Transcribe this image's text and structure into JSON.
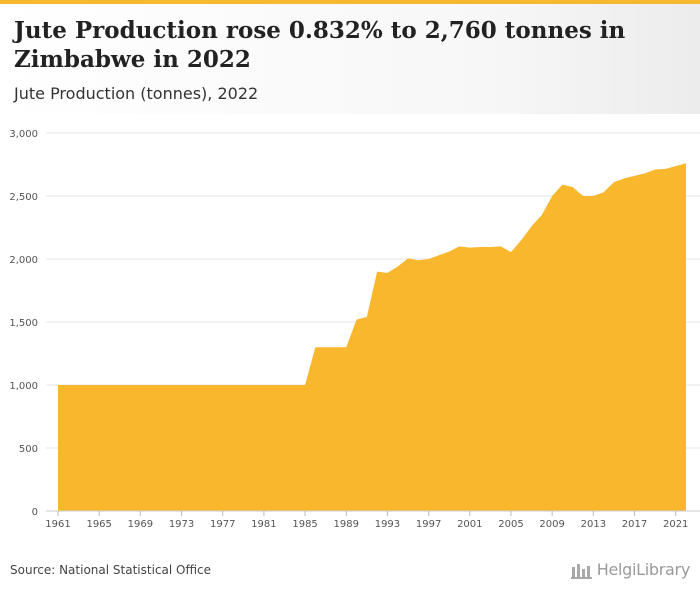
{
  "header": {
    "title": "Jute Production rose 0.832% to 2,760 tonnes in Zimbabwe in 2022",
    "subtitle": "Jute Production (tonnes), 2022"
  },
  "footer": {
    "source": "Source: National Statistical Office",
    "brand": "HelgiLibrary"
  },
  "colors": {
    "area": "#f8b72d",
    "grid": "#e6e6e6",
    "accent": "#f5b82e"
  },
  "chart_data": {
    "type": "area",
    "title": "Jute Production rose 0.832% to 2,760 tonnes in Zimbabwe in 2022",
    "subtitle": "Jute Production (tonnes), 2022",
    "xlabel": "",
    "ylabel": "",
    "grid": true,
    "xlim": [
      1961,
      2022
    ],
    "ylim": [
      0,
      3000
    ],
    "y_ticks": [
      0,
      500,
      1000,
      1500,
      2000,
      2500,
      3000
    ],
    "y_tick_labels": [
      "0",
      "500",
      "1,000",
      "1,500",
      "2,000",
      "2,500",
      "3,000"
    ],
    "x_ticks": [
      1961,
      1965,
      1969,
      1973,
      1977,
      1981,
      1985,
      1989,
      1993,
      1997,
      2001,
      2005,
      2009,
      2013,
      2017,
      2021
    ],
    "x": [
      1961,
      1962,
      1963,
      1964,
      1965,
      1966,
      1967,
      1968,
      1969,
      1970,
      1971,
      1972,
      1973,
      1974,
      1975,
      1976,
      1977,
      1978,
      1979,
      1980,
      1981,
      1982,
      1983,
      1984,
      1985,
      1986,
      1987,
      1988,
      1989,
      1990,
      1991,
      1992,
      1993,
      1994,
      1995,
      1996,
      1997,
      1998,
      1999,
      2000,
      2001,
      2002,
      2003,
      2004,
      2005,
      2006,
      2007,
      2008,
      2009,
      2010,
      2011,
      2012,
      2013,
      2014,
      2015,
      2016,
      2017,
      2018,
      2019,
      2020,
      2021,
      2022
    ],
    "values": [
      1000,
      1000,
      1000,
      1000,
      1000,
      1000,
      1000,
      1000,
      1000,
      1000,
      1000,
      1000,
      1000,
      1000,
      1000,
      1000,
      1000,
      1000,
      1000,
      1000,
      1000,
      1000,
      1000,
      1000,
      1000,
      1300,
      1300,
      1300,
      1300,
      1520,
      1540,
      1900,
      1890,
      1940,
      2005,
      1990,
      2000,
      2030,
      2060,
      2100,
      2090,
      2095,
      2095,
      2100,
      2055,
      2150,
      2260,
      2350,
      2500,
      2590,
      2570,
      2500,
      2500,
      2530,
      2610,
      2640,
      2660,
      2680,
      2710,
      2715,
      2737,
      2760
    ]
  }
}
